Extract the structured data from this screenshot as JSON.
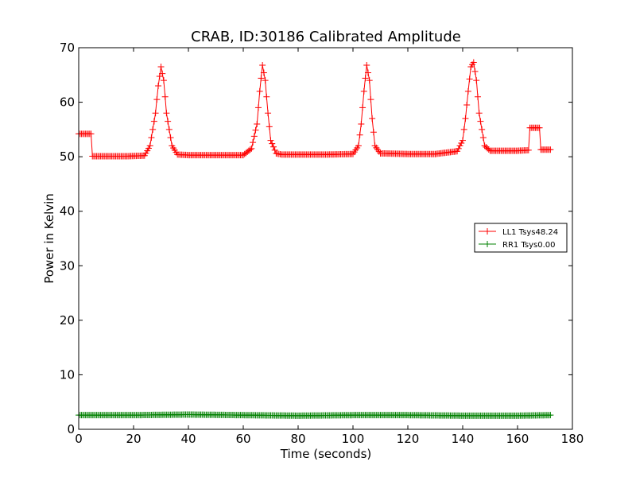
{
  "chart_data": {
    "type": "line",
    "title": "CRAB, ID:30186 Calibrated Amplitude",
    "xlabel": "Time (seconds)",
    "ylabel": "Power in Kelvin",
    "xlim": [
      0,
      180
    ],
    "ylim": [
      0,
      70
    ],
    "xticks": [
      "0",
      "20",
      "40",
      "60",
      "80",
      "100",
      "120",
      "140",
      "160",
      "180"
    ],
    "yticks": [
      "0",
      "10",
      "20",
      "30",
      "40",
      "50",
      "60",
      "70"
    ],
    "grid": false,
    "legend_position": "center-right",
    "marker": "+",
    "series": [
      {
        "name": "LL1 Tsys48.24",
        "color": "#ff0000",
        "x": [
          0,
          4.5,
          4.6,
          10,
          18,
          24,
          26,
          28,
          29,
          30,
          31,
          32,
          34,
          36,
          40,
          50,
          60,
          63,
          65,
          66,
          67,
          68,
          69,
          70,
          72,
          74,
          80,
          90,
          100,
          102,
          103,
          104,
          105,
          106,
          107,
          108,
          110,
          112,
          120,
          130,
          138,
          140,
          141,
          142,
          143,
          144,
          145,
          146,
          148,
          150,
          160,
          164,
          164.5,
          168,
          168.5,
          172
        ],
        "y": [
          54.2,
          54.2,
          50.1,
          50.1,
          50.1,
          50.2,
          52,
          58,
          63,
          66.5,
          64,
          58,
          52,
          50.4,
          50.3,
          50.3,
          50.3,
          51.5,
          56,
          62,
          66.8,
          64,
          58,
          53,
          50.6,
          50.4,
          50.4,
          50.4,
          50.5,
          52,
          56,
          62,
          66.8,
          64,
          57,
          52,
          50.6,
          50.6,
          50.5,
          50.5,
          51,
          53,
          57,
          62,
          66.5,
          67.3,
          64,
          58,
          52,
          51.1,
          51.1,
          51.2,
          55.3,
          55.3,
          51.3,
          51.3
        ]
      },
      {
        "name": "RR1 Tsys0.00",
        "color": "#008000",
        "x": [
          0,
          20,
          40,
          60,
          80,
          100,
          120,
          140,
          160,
          172
        ],
        "y": [
          2.6,
          2.6,
          2.7,
          2.6,
          2.5,
          2.6,
          2.6,
          2.5,
          2.5,
          2.6
        ]
      }
    ]
  }
}
